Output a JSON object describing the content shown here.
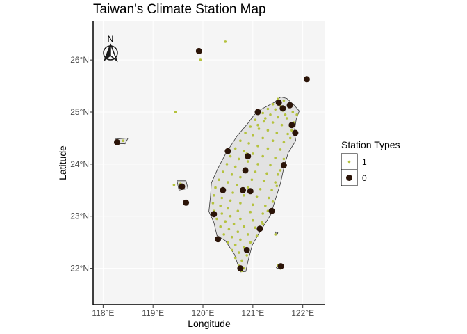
{
  "title": "Taiwan's Climate Station Map",
  "axes": {
    "x_title": "Longitude",
    "y_title": "Latitude",
    "x_ticks": [
      {
        "value": 118,
        "label": "118°E"
      },
      {
        "value": 119,
        "label": "119°E"
      },
      {
        "value": 120,
        "label": "120°E"
      },
      {
        "value": 121,
        "label": "121°E"
      },
      {
        "value": 122,
        "label": "122°E"
      }
    ],
    "y_ticks": [
      {
        "value": 22,
        "label": "22°N"
      },
      {
        "value": 23,
        "label": "23°N"
      },
      {
        "value": 24,
        "label": "24°N"
      },
      {
        "value": 25,
        "label": "25°N"
      },
      {
        "value": 26,
        "label": "26°N"
      }
    ],
    "xlim": [
      117.8,
      122.45
    ],
    "ylim": [
      21.3,
      26.75
    ]
  },
  "north_arrow_label": "N",
  "legend": {
    "title": "Station Types",
    "entries": [
      {
        "label": "1",
        "color": "#b5c23e",
        "shape": "small-diamond"
      },
      {
        "label": "0",
        "color": "#2b1408",
        "shape": "large-dot"
      }
    ]
  },
  "colors": {
    "panel_bg": "#f5f5f5",
    "grid": "#ffffff",
    "land_fill": "#e2e2e2",
    "coast": "#333333",
    "type1": "#b5c23e",
    "type0": "#2b1408"
  },
  "chart_data": {
    "type": "scatter",
    "title": "Taiwan's Climate Station Map",
    "xlabel": "Longitude",
    "ylabel": "Latitude",
    "xlim": [
      117.8,
      122.45
    ],
    "ylim": [
      21.3,
      26.75
    ],
    "grid": true,
    "legend_position": "right",
    "land_outline": [
      [
        121.56,
        25.29
      ],
      [
        121.68,
        25.26
      ],
      [
        121.82,
        25.14
      ],
      [
        121.93,
        25.02
      ],
      [
        121.87,
        24.86
      ],
      [
        121.83,
        24.62
      ],
      [
        121.86,
        24.45
      ],
      [
        121.71,
        24.22
      ],
      [
        121.63,
        23.97
      ],
      [
        121.55,
        23.62
      ],
      [
        121.44,
        23.29
      ],
      [
        121.36,
        23.03
      ],
      [
        121.16,
        22.73
      ],
      [
        120.99,
        22.45
      ],
      [
        120.9,
        22.13
      ],
      [
        120.86,
        21.94
      ],
      [
        120.75,
        21.93
      ],
      [
        120.7,
        22.07
      ],
      [
        120.63,
        22.27
      ],
      [
        120.45,
        22.53
      ],
      [
        120.28,
        22.63
      ],
      [
        120.22,
        22.88
      ],
      [
        120.12,
        23.09
      ],
      [
        120.15,
        23.37
      ],
      [
        120.17,
        23.64
      ],
      [
        120.3,
        23.92
      ],
      [
        120.46,
        24.21
      ],
      [
        120.69,
        24.55
      ],
      [
        120.89,
        24.77
      ],
      [
        121.03,
        24.95
      ],
      [
        121.18,
        25.06
      ],
      [
        121.42,
        25.18
      ]
    ],
    "islands": [
      {
        "name_hidden": true,
        "outline": [
          [
            119.48,
            23.68
          ],
          [
            119.66,
            23.68
          ],
          [
            119.7,
            23.53
          ],
          [
            119.52,
            23.5
          ]
        ]
      },
      {
        "name_hidden": true,
        "outline": [
          [
            118.24,
            24.48
          ],
          [
            118.5,
            24.5
          ],
          [
            118.44,
            24.39
          ],
          [
            118.22,
            24.4
          ]
        ]
      },
      {
        "name_hidden": true,
        "outline": [
          [
            121.5,
            22.08
          ],
          [
            121.6,
            22.05
          ],
          [
            121.56,
            21.98
          ],
          [
            121.47,
            22.01
          ]
        ]
      },
      {
        "name_hidden": true,
        "outline": [
          [
            121.45,
            22.7
          ],
          [
            121.5,
            22.68
          ],
          [
            121.48,
            22.63
          ]
        ]
      }
    ],
    "series": [
      {
        "name": "1",
        "type_code": 1,
        "points": [
          [
            121.5,
            25.25
          ],
          [
            121.62,
            25.22
          ],
          [
            121.4,
            25.15
          ],
          [
            121.55,
            25.12
          ],
          [
            121.72,
            25.1
          ],
          [
            121.3,
            25.06
          ],
          [
            121.45,
            25.05
          ],
          [
            121.6,
            25.03
          ],
          [
            121.8,
            25.0
          ],
          [
            121.2,
            24.98
          ],
          [
            121.35,
            24.95
          ],
          [
            121.5,
            24.9
          ],
          [
            121.68,
            24.88
          ],
          [
            121.05,
            24.85
          ],
          [
            121.22,
            24.82
          ],
          [
            121.4,
            24.8
          ],
          [
            121.58,
            24.75
          ],
          [
            121.75,
            24.72
          ],
          [
            120.95,
            24.72
          ],
          [
            121.12,
            24.68
          ],
          [
            121.3,
            24.65
          ],
          [
            121.48,
            24.6
          ],
          [
            121.7,
            24.58
          ],
          [
            120.85,
            24.6
          ],
          [
            121.0,
            24.55
          ],
          [
            121.2,
            24.5
          ],
          [
            121.4,
            24.45
          ],
          [
            121.62,
            24.42
          ],
          [
            120.75,
            24.45
          ],
          [
            120.92,
            24.4
          ],
          [
            121.1,
            24.35
          ],
          [
            121.3,
            24.3
          ],
          [
            121.55,
            24.28
          ],
          [
            120.65,
            24.3
          ],
          [
            120.82,
            24.25
          ],
          [
            121.0,
            24.2
          ],
          [
            121.2,
            24.15
          ],
          [
            121.45,
            24.12
          ],
          [
            120.55,
            24.15
          ],
          [
            120.72,
            24.1
          ],
          [
            120.9,
            24.05
          ],
          [
            121.1,
            24.0
          ],
          [
            121.35,
            23.98
          ],
          [
            120.48,
            24.0
          ],
          [
            120.65,
            23.95
          ],
          [
            120.82,
            23.9
          ],
          [
            121.05,
            23.85
          ],
          [
            121.28,
            23.82
          ],
          [
            121.5,
            23.8
          ],
          [
            120.4,
            23.85
          ],
          [
            120.58,
            23.8
          ],
          [
            120.75,
            23.75
          ],
          [
            120.98,
            23.7
          ],
          [
            121.22,
            23.68
          ],
          [
            121.45,
            23.65
          ],
          [
            120.32,
            23.7
          ],
          [
            120.5,
            23.65
          ],
          [
            120.68,
            23.6
          ],
          [
            120.9,
            23.55
          ],
          [
            121.15,
            23.52
          ],
          [
            121.38,
            23.5
          ],
          [
            120.25,
            23.55
          ],
          [
            120.42,
            23.5
          ],
          [
            120.6,
            23.45
          ],
          [
            120.82,
            23.4
          ],
          [
            121.08,
            23.38
          ],
          [
            121.32,
            23.35
          ],
          [
            120.22,
            23.4
          ],
          [
            120.38,
            23.35
          ],
          [
            120.55,
            23.3
          ],
          [
            120.75,
            23.25
          ],
          [
            121.0,
            23.22
          ],
          [
            121.25,
            23.2
          ],
          [
            120.2,
            23.25
          ],
          [
            120.35,
            23.2
          ],
          [
            120.5,
            23.15
          ],
          [
            120.7,
            23.1
          ],
          [
            120.95,
            23.08
          ],
          [
            121.2,
            23.05
          ],
          [
            120.22,
            23.1
          ],
          [
            120.38,
            23.05
          ],
          [
            120.55,
            23.0
          ],
          [
            120.75,
            22.95
          ],
          [
            121.0,
            22.92
          ],
          [
            121.18,
            22.88
          ],
          [
            120.28,
            22.95
          ],
          [
            120.45,
            22.9
          ],
          [
            120.62,
            22.85
          ],
          [
            120.82,
            22.8
          ],
          [
            121.05,
            22.78
          ],
          [
            120.35,
            22.8
          ],
          [
            120.52,
            22.75
          ],
          [
            120.7,
            22.7
          ],
          [
            120.9,
            22.65
          ],
          [
            121.08,
            22.62
          ],
          [
            120.42,
            22.65
          ],
          [
            120.58,
            22.6
          ],
          [
            120.75,
            22.55
          ],
          [
            120.95,
            22.5
          ],
          [
            120.5,
            22.5
          ],
          [
            120.65,
            22.45
          ],
          [
            120.82,
            22.4
          ],
          [
            120.58,
            22.35
          ],
          [
            120.72,
            22.3
          ],
          [
            120.88,
            22.25
          ],
          [
            120.65,
            22.2
          ],
          [
            120.78,
            22.15
          ],
          [
            120.72,
            22.05
          ],
          [
            120.82,
            22.0
          ],
          [
            120.78,
            21.95
          ],
          [
            121.88,
            24.95
          ],
          [
            121.82,
            24.8
          ],
          [
            121.78,
            24.65
          ],
          [
            121.75,
            24.5
          ],
          [
            121.62,
            24.1
          ],
          [
            121.55,
            23.88
          ],
          [
            121.48,
            23.58
          ],
          [
            121.4,
            23.28
          ],
          [
            121.3,
            23.1
          ],
          [
            121.2,
            22.85
          ],
          [
            119.42,
            23.6
          ],
          [
            119.58,
            23.55
          ],
          [
            119.55,
            23.62
          ],
          [
            118.4,
            24.45
          ],
          [
            118.3,
            24.42
          ],
          [
            121.5,
            22.05
          ],
          [
            121.55,
            22.0
          ],
          [
            119.95,
            26.0
          ],
          [
            120.45,
            26.35
          ],
          [
            119.45,
            25.0
          ],
          [
            121.45,
            22.65
          ],
          [
            121.1,
            24.75
          ],
          [
            120.88,
            24.2
          ],
          [
            121.25,
            24.88
          ],
          [
            121.65,
            24.95
          ]
        ]
      },
      {
        "name": "0",
        "type_code": 0,
        "points": [
          [
            121.52,
            25.18
          ],
          [
            121.74,
            25.13
          ],
          [
            121.6,
            25.07
          ],
          [
            121.1,
            25.0
          ],
          [
            121.78,
            24.75
          ],
          [
            121.85,
            24.6
          ],
          [
            120.5,
            24.25
          ],
          [
            120.9,
            24.15
          ],
          [
            121.62,
            23.98
          ],
          [
            120.85,
            23.88
          ],
          [
            120.4,
            23.5
          ],
          [
            120.8,
            23.5
          ],
          [
            120.95,
            23.48
          ],
          [
            121.38,
            23.1
          ],
          [
            120.22,
            23.04
          ],
          [
            121.14,
            22.76
          ],
          [
            120.3,
            22.56
          ],
          [
            120.88,
            22.35
          ],
          [
            120.75,
            22.0
          ],
          [
            121.56,
            22.04
          ],
          [
            119.58,
            23.57
          ],
          [
            119.66,
            23.26
          ],
          [
            118.28,
            24.42
          ],
          [
            119.92,
            26.17
          ],
          [
            122.08,
            25.63
          ]
        ]
      }
    ]
  }
}
